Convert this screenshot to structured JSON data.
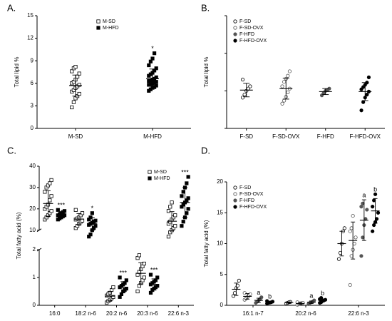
{
  "chart_data": [
    {
      "type": "dotplot",
      "panel": "A.",
      "ylabel": "Total lipid %",
      "categories": [
        "M-SD",
        "M-HFD"
      ],
      "ylim": [
        0,
        15
      ],
      "yticks": [
        0,
        3,
        6,
        9,
        12,
        15
      ],
      "legend": "upper center",
      "series": [
        {
          "name": "M-SD",
          "color": "#000000",
          "marker": "square-open",
          "points": [
            [
              2.8,
              3.5,
              4.0,
              4.3,
              4.6,
              4.9,
              5.1,
              5.4,
              5.6,
              5.8,
              6.0,
              6.2,
              6.5,
              6.9,
              7.3,
              7.6,
              8.0,
              8.2
            ],
            null
          ],
          "means": [
            5.7,
            null
          ],
          "sd": [
            1.4,
            null
          ],
          "annotations": [
            null,
            null
          ]
        },
        {
          "name": "M-HFD",
          "color": "#000000",
          "marker": "square",
          "points": [
            null,
            [
              5.0,
              5.2,
              5.4,
              5.5,
              5.7,
              5.8,
              5.9,
              6.0,
              6.1,
              6.2,
              6.3,
              6.4,
              6.5,
              6.6,
              6.8,
              7.0,
              7.2,
              7.4,
              7.7,
              8.0,
              8.4,
              8.9,
              9.3,
              10.0
            ]
          ],
          "means": [
            null,
            6.6
          ],
          "sd": [
            null,
            1.3
          ],
          "annotations": [
            null,
            "*"
          ]
        }
      ]
    },
    {
      "type": "dotplot",
      "panel": "B.",
      "ylabel": "Total lipid  %",
      "categories": [
        "F-SD",
        "F-SD-OVX",
        "F-HFD",
        "F-HFD-OVX"
      ],
      "ylim": [
        0,
        15
      ],
      "yticks": [
        0,
        5,
        10,
        15
      ],
      "tick_labels": false,
      "legend": "upper left",
      "series": [
        {
          "name": "F-SD",
          "color": "#000000",
          "marker": "circle-open",
          "points": [
            [
              4.1,
              4.5,
              5.0,
              5.3,
              5.6,
              6.5
            ],
            null,
            null,
            null
          ],
          "means": [
            5.1,
            null,
            null,
            null
          ],
          "sd": [
            0.9,
            null,
            null,
            null
          ]
        },
        {
          "name": "F-SD-OVX",
          "color": "#555555",
          "marker": "circle-open",
          "points": [
            null,
            [
              3.3,
              3.7,
              4.2,
              4.8,
              5.3,
              5.6,
              6.2,
              6.6,
              7.0,
              7.6
            ],
            null,
            null
          ],
          "means": [
            null,
            5.3,
            null,
            null
          ],
          "sd": [
            null,
            1.4,
            null,
            null
          ]
        },
        {
          "name": "F-HFD",
          "color": "#555555",
          "marker": "circle",
          "points": [
            null,
            null,
            [
              4.4,
              4.7,
              5.0,
              5.1,
              5.3
            ],
            null
          ],
          "means": [
            null,
            null,
            4.9,
            null
          ],
          "sd": [
            null,
            null,
            0.4,
            null
          ]
        },
        {
          "name": "F-HFD-OVX",
          "color": "#000000",
          "marker": "circle",
          "points": [
            null,
            null,
            null,
            [
              2.4,
              3.5,
              4.1,
              4.5,
              4.9,
              5.2,
              5.5,
              5.8,
              6.1,
              6.8
            ]
          ],
          "means": [
            null,
            null,
            null,
            4.9
          ],
          "sd": [
            null,
            null,
            null,
            1.2
          ]
        }
      ]
    },
    {
      "type": "dotplot",
      "panel": "C.",
      "ylabel": "Total fatty acid (%)",
      "categories": [
        "16:0",
        "18:2 n-6",
        "20:2 n-6",
        "20:3 n-6",
        "22:6 n-3"
      ],
      "ylim": [
        0,
        2
      ],
      "yticks": [
        0,
        1,
        2
      ],
      "ylim_upper": [
        10,
        40
      ],
      "yticks_upper": [
        10,
        20,
        30,
        40
      ],
      "legend": "upper right",
      "series": [
        {
          "name": "M-SD",
          "color": "#000000",
          "marker": "square-open",
          "points": [
            [
              15,
              16,
              17,
              18,
              19,
              20,
              21,
              22,
              24,
              26,
              28,
              30,
              31,
              32,
              33.5
            ],
            [
              11,
              12,
              13,
              14,
              14.5,
              15,
              15.5,
              16,
              17,
              18,
              19.5
            ],
            [
              0.1,
              0.15,
              0.2,
              0.25,
              0.3,
              0.35,
              0.4,
              0.45,
              0.55,
              0.65
            ],
            [
              0.5,
              0.7,
              0.8,
              0.9,
              1.0,
              1.1,
              1.2,
              1.3,
              1.4,
              1.5,
              1.7,
              1.8
            ],
            [
              7,
              9,
              10,
              11,
              12,
              13,
              14,
              15,
              16,
              17,
              19,
              21,
              23
            ]
          ],
          "means": [
            22.5,
            15.2,
            0.33,
            1.15,
            14.2
          ],
          "sd": [
            6,
            2.6,
            0.17,
            0.38,
            4.5
          ]
        },
        {
          "name": "M-HFD",
          "color": "#000000",
          "marker": "square",
          "points": [
            [
              15,
              15.5,
              16,
              16.5,
              17,
              17,
              17.5,
              18,
              18.5,
              19,
              19.5
            ],
            [
              7,
              8,
              10,
              11,
              12,
              12.5,
              13,
              13.5,
              14,
              14.5,
              15,
              16,
              18
            ],
            [
              0.3,
              0.4,
              0.5,
              0.55,
              0.6,
              0.65,
              0.7,
              0.75,
              0.8,
              0.9,
              1.0
            ],
            [
              0.45,
              0.55,
              0.6,
              0.65,
              0.7,
              0.75,
              0.8,
              0.85,
              0.9,
              1.0,
              1.1
            ],
            [
              12,
              14,
              16,
              18,
              20,
              21,
              22,
              23,
              24,
              25,
              26,
              28,
              30,
              32,
              35
            ]
          ],
          "means": [
            17.2,
            13,
            0.65,
            0.75,
            23
          ],
          "sd": [
            1.3,
            3,
            0.2,
            0.2,
            7
          ],
          "annotations": [
            "***",
            "*",
            "***",
            "***",
            "***"
          ]
        }
      ]
    },
    {
      "type": "dotplot",
      "panel": "D.",
      "ylabel": "Total fatty acid (%)",
      "categories": [
        "16:1 n-7",
        "20:2 n-6",
        "22:6 n-3"
      ],
      "ylim": [
        0,
        20
      ],
      "yticks": [
        0,
        5,
        10,
        15,
        20
      ],
      "legend": "upper left",
      "series": [
        {
          "name": "F-SD",
          "color": "#000000",
          "marker": "circle-open",
          "points": [
            [
              1.5,
              2.0,
              2.8,
              3.2,
              4.0
            ],
            [
              0.3,
              0.4,
              0.5,
              0.55
            ],
            [
              7.5,
              8.5,
              10,
              12,
              12.5
            ]
          ],
          "means": [
            2.6,
            0.45,
            10
          ],
          "sd": [
            1.0,
            0.1,
            2
          ]
        },
        {
          "name": "F-SD-OVX",
          "color": "#555555",
          "marker": "circle-open",
          "points": [
            [
              0.9,
              1.1,
              1.3,
              1.6,
              1.8,
              2.0
            ],
            [
              0.1,
              0.2,
              0.3,
              0.35,
              0.4,
              0.5
            ],
            [
              3.3,
              8,
              9,
              10,
              11,
              12,
              12.5,
              14.5
            ]
          ],
          "means": [
            1.45,
            0.3,
            10.5
          ],
          "sd": [
            0.45,
            0.15,
            3
          ]
        },
        {
          "name": "F-HFD",
          "color": "#555555",
          "marker": "circle",
          "points": [
            [
              0.4,
              0.6,
              0.8,
              1.0,
              1.3
            ],
            [
              0.2,
              0.4,
              0.5,
              0.6,
              0.8
            ],
            [
              8,
              11,
              13,
              14,
              15.5,
              16,
              16.5
            ]
          ],
          "means": [
            0.8,
            0.5,
            13.8
          ],
          "sd": [
            0.35,
            0.2,
            3.3
          ],
          "annotations": [
            "a",
            "a",
            "a"
          ]
        },
        {
          "name": "F-HFD-OVX",
          "color": "#000000",
          "marker": "circle",
          "points": [
            [
              0.3,
              0.4,
              0.45,
              0.5,
              0.6,
              0.7
            ],
            [
              0.4,
              0.5,
              0.7,
              0.8,
              0.9,
              1.0,
              1.2
            ],
            [
              12,
              13,
              13.5,
              14,
              15,
              16,
              17,
              18
            ]
          ],
          "means": [
            0.5,
            0.8,
            15.3
          ],
          "sd": [
            0.15,
            0.25,
            2
          ],
          "annotations": [
            "b",
            "b",
            "b"
          ]
        }
      ]
    }
  ]
}
